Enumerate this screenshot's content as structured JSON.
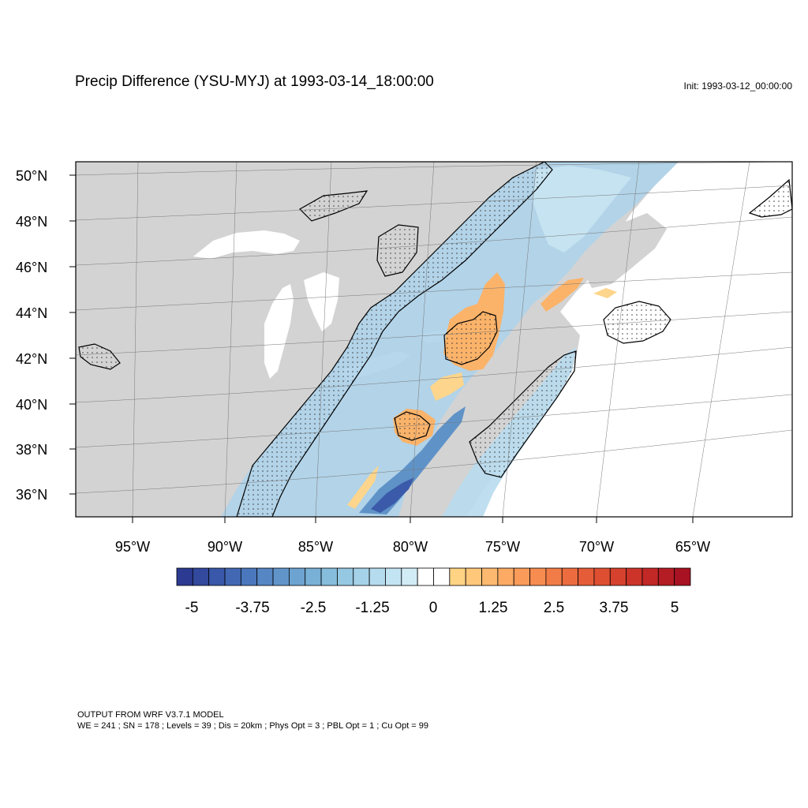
{
  "title": "Precip Difference (YSU-MYJ) at 1993-03-14_18:00:00",
  "init_label": "Init: 1993-03-12_00:00:00",
  "lat_labels": [
    "50°N",
    "48°N",
    "46°N",
    "44°N",
    "42°N",
    "40°N",
    "38°N",
    "36°N"
  ],
  "lon_labels": [
    "95°W",
    "90°W",
    "85°W",
    "80°W",
    "75°W",
    "70°W",
    "65°W"
  ],
  "colorbar": {
    "labels": [
      "-5",
      "-3.75",
      "-2.5",
      "-1.25",
      "0",
      "1.25",
      "2.5",
      "3.75",
      "5"
    ],
    "colors": [
      "#2c3b91",
      "#32499d",
      "#3a58a9",
      "#4268b4",
      "#4b78bd",
      "#5686c4",
      "#6195ca",
      "#6ca3d0",
      "#78b0d6",
      "#86bddc",
      "#95c8e2",
      "#a5d2e8",
      "#b4dcee",
      "#c3e4f2",
      "#d2ecf6",
      "#ffffff",
      "#ffffff",
      "#fed383",
      "#fec77a",
      "#fdb96f",
      "#fcaa64",
      "#fa9b5a",
      "#f78c50",
      "#f27c47",
      "#ec6c3f",
      "#e55d38",
      "#de4f32",
      "#d6412d",
      "#cc3429",
      "#c12826",
      "#b51d24",
      "#a81222"
    ]
  },
  "footer": {
    "line1": "OUTPUT FROM WRF V3.7.1 MODEL",
    "line2": "WE = 241 ; SN = 178 ; Levels = 39 ; Dis = 20km ; Phys Opt = 3 ; PBL Opt = 1 ; Cu Opt = 99"
  }
}
